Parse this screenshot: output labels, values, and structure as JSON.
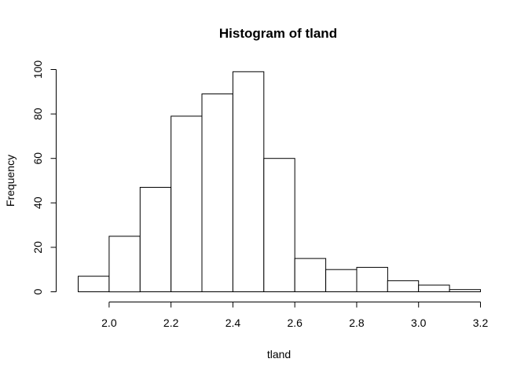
{
  "chart_data": {
    "type": "bar",
    "title": "Histogram of tland",
    "xlabel": "tland",
    "ylabel": "Frequency",
    "bin_edges": [
      1.9,
      2.0,
      2.1,
      2.2,
      2.3,
      2.4,
      2.5,
      2.6,
      2.7,
      2.8,
      2.9,
      3.0,
      3.1,
      3.2
    ],
    "values": [
      7,
      25,
      47,
      79,
      89,
      99,
      60,
      15,
      10,
      11,
      5,
      3,
      1
    ],
    "xlim": [
      1.9,
      3.2
    ],
    "ylim": [
      0,
      100
    ],
    "x_ticks": [
      2.0,
      2.2,
      2.4,
      2.6,
      2.8,
      3.0,
      3.2
    ],
    "x_tick_labels": [
      "2.0",
      "2.2",
      "2.4",
      "2.6",
      "2.8",
      "3.0",
      "3.2"
    ],
    "y_ticks": [
      0,
      20,
      40,
      60,
      80,
      100
    ],
    "y_tick_labels": [
      "0",
      "20",
      "40",
      "60",
      "80",
      "100"
    ],
    "grid": false
  }
}
